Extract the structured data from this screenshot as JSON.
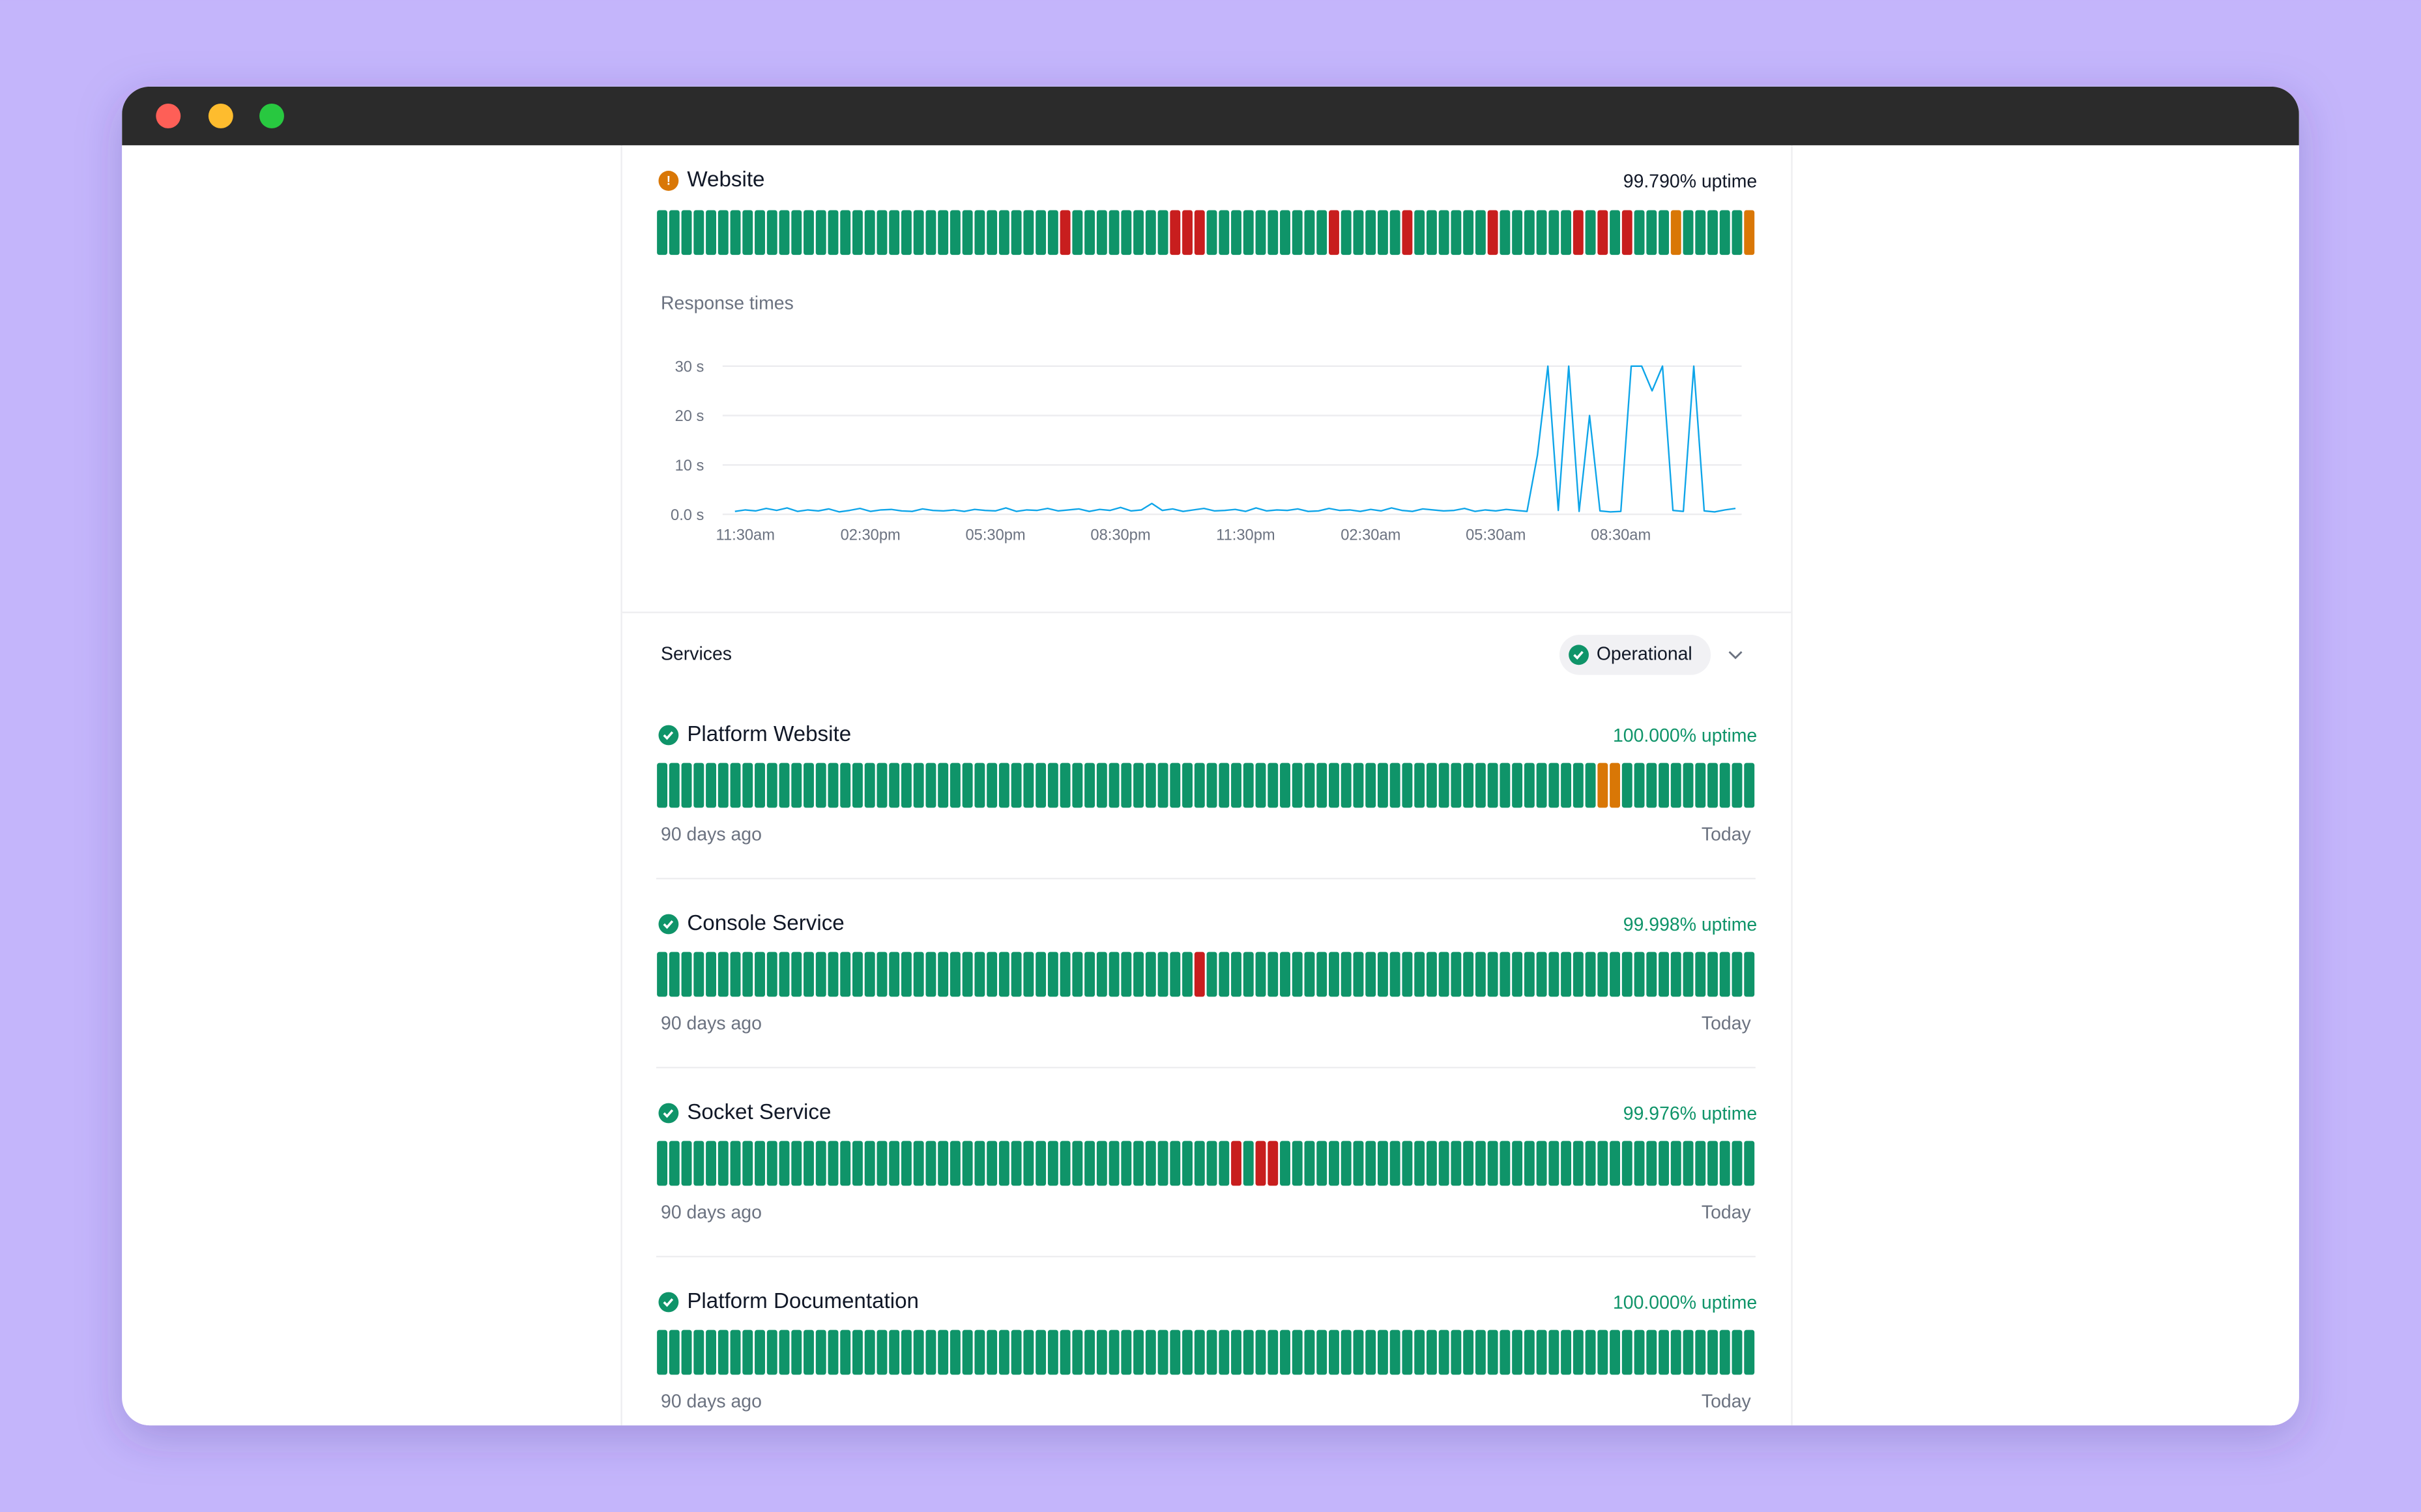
{
  "status_colors": {
    "u": "#0f9469",
    "d": "#c81e1e",
    "p": "#d97706"
  },
  "website": {
    "name": "Website",
    "uptime": "99.790% uptime",
    "days": [
      "u",
      "u",
      "u",
      "u",
      "u",
      "u",
      "u",
      "u",
      "u",
      "u",
      "u",
      "u",
      "u",
      "u",
      "u",
      "u",
      "u",
      "u",
      "u",
      "u",
      "u",
      "u",
      "u",
      "u",
      "u",
      "u",
      "u",
      "u",
      "u",
      "u",
      "u",
      "u",
      "u",
      "d",
      "u",
      "u",
      "u",
      "u",
      "u",
      "u",
      "u",
      "u",
      "d",
      "d",
      "d",
      "u",
      "u",
      "u",
      "u",
      "u",
      "u",
      "u",
      "u",
      "u",
      "u",
      "d",
      "u",
      "u",
      "u",
      "u",
      "u",
      "d",
      "u",
      "u",
      "u",
      "u",
      "u",
      "u",
      "d",
      "u",
      "u",
      "u",
      "u",
      "u",
      "u",
      "d",
      "u",
      "d",
      "u",
      "d",
      "u",
      "u",
      "u",
      "p",
      "u",
      "u",
      "u",
      "u",
      "u",
      "p"
    ]
  },
  "chart_data": {
    "type": "line",
    "title": "Response times",
    "color": "#0ea5e9",
    "values": [
      0.6,
      0.9,
      0.7,
      1.2,
      0.8,
      1.3,
      0.6,
      0.9,
      0.7,
      1.1,
      0.5,
      0.8,
      1.2,
      0.6,
      0.9,
      1.0,
      0.7,
      0.6,
      1.1,
      0.8,
      0.7,
      0.9,
      0.6,
      1.0,
      0.8,
      0.7,
      1.3,
      0.6,
      0.9,
      0.8,
      1.2,
      0.7,
      0.9,
      1.1,
      0.6,
      1.0,
      0.8,
      1.4,
      0.7,
      0.9,
      2.2,
      0.8,
      1.1,
      0.6,
      0.9,
      1.2,
      0.7,
      0.8,
      1.0,
      0.6,
      1.3,
      0.7,
      0.9,
      0.8,
      1.1,
      0.6,
      0.7,
      1.2,
      0.8,
      0.9,
      0.6,
      1.0,
      0.7,
      1.3,
      0.8,
      0.6,
      1.1,
      0.9,
      0.7,
      0.8,
      1.2,
      0.6,
      0.9,
      0.7,
      1.0,
      0.8,
      0.6,
      12,
      30,
      0.8,
      30,
      0.6,
      20,
      0.7,
      0.5,
      0.6,
      30,
      30,
      25,
      30,
      0.8,
      0.6,
      30,
      0.7,
      0.5,
      0.9,
      1.2
    ],
    "xlim": [
      0,
      96
    ],
    "xticks": [
      {
        "value": 1,
        "label": "11:30am"
      },
      {
        "value": 13,
        "label": "02:30pm"
      },
      {
        "value": 25,
        "label": "05:30pm"
      },
      {
        "value": 37,
        "label": "08:30pm"
      },
      {
        "value": 49,
        "label": "11:30pm"
      },
      {
        "value": 61,
        "label": "02:30am"
      },
      {
        "value": 73,
        "label": "05:30am"
      },
      {
        "value": 85,
        "label": "08:30am"
      }
    ],
    "ylim": [
      0,
      30
    ],
    "yticks": [
      {
        "value": 0,
        "label": "0.0 s"
      },
      {
        "value": 10,
        "label": "10 s"
      },
      {
        "value": 20,
        "label": "20 s"
      },
      {
        "value": 30,
        "label": "30 s"
      }
    ],
    "grid": true
  },
  "services": {
    "title": "Services",
    "status": "Operational",
    "monitors": [
      {
        "name": "Platform Website",
        "uptime": "100.000% uptime",
        "start_label": "90 days ago",
        "end_label": "Today",
        "days": [
          "u",
          "u",
          "u",
          "u",
          "u",
          "u",
          "u",
          "u",
          "u",
          "u",
          "u",
          "u",
          "u",
          "u",
          "u",
          "u",
          "u",
          "u",
          "u",
          "u",
          "u",
          "u",
          "u",
          "u",
          "u",
          "u",
          "u",
          "u",
          "u",
          "u",
          "u",
          "u",
          "u",
          "u",
          "u",
          "u",
          "u",
          "u",
          "u",
          "u",
          "u",
          "u",
          "u",
          "u",
          "u",
          "u",
          "u",
          "u",
          "u",
          "u",
          "u",
          "u",
          "u",
          "u",
          "u",
          "u",
          "u",
          "u",
          "u",
          "u",
          "u",
          "u",
          "u",
          "u",
          "u",
          "u",
          "u",
          "u",
          "u",
          "u",
          "u",
          "u",
          "u",
          "u",
          "u",
          "u",
          "u",
          "p",
          "p",
          "u",
          "u",
          "u",
          "u",
          "u",
          "u",
          "u",
          "u",
          "u",
          "u",
          "u"
        ]
      },
      {
        "name": "Console Service",
        "uptime": "99.998% uptime",
        "start_label": "90 days ago",
        "end_label": "Today",
        "days": [
          "u",
          "u",
          "u",
          "u",
          "u",
          "u",
          "u",
          "u",
          "u",
          "u",
          "u",
          "u",
          "u",
          "u",
          "u",
          "u",
          "u",
          "u",
          "u",
          "u",
          "u",
          "u",
          "u",
          "u",
          "u",
          "u",
          "u",
          "u",
          "u",
          "u",
          "u",
          "u",
          "u",
          "u",
          "u",
          "u",
          "u",
          "u",
          "u",
          "u",
          "u",
          "u",
          "u",
          "u",
          "d",
          "u",
          "u",
          "u",
          "u",
          "u",
          "u",
          "u",
          "u",
          "u",
          "u",
          "u",
          "u",
          "u",
          "u",
          "u",
          "u",
          "u",
          "u",
          "u",
          "u",
          "u",
          "u",
          "u",
          "u",
          "u",
          "u",
          "u",
          "u",
          "u",
          "u",
          "u",
          "u",
          "u",
          "u",
          "u",
          "u",
          "u",
          "u",
          "u",
          "u",
          "u",
          "u",
          "u",
          "u",
          "u"
        ]
      },
      {
        "name": "Socket Service",
        "uptime": "99.976% uptime",
        "start_label": "90 days ago",
        "end_label": "Today",
        "days": [
          "u",
          "u",
          "u",
          "u",
          "u",
          "u",
          "u",
          "u",
          "u",
          "u",
          "u",
          "u",
          "u",
          "u",
          "u",
          "u",
          "u",
          "u",
          "u",
          "u",
          "u",
          "u",
          "u",
          "u",
          "u",
          "u",
          "u",
          "u",
          "u",
          "u",
          "u",
          "u",
          "u",
          "u",
          "u",
          "u",
          "u",
          "u",
          "u",
          "u",
          "u",
          "u",
          "u",
          "u",
          "u",
          "u",
          "u",
          "d",
          "u",
          "d",
          "d",
          "u",
          "u",
          "u",
          "u",
          "u",
          "u",
          "u",
          "u",
          "u",
          "u",
          "u",
          "u",
          "u",
          "u",
          "u",
          "u",
          "u",
          "u",
          "u",
          "u",
          "u",
          "u",
          "u",
          "u",
          "u",
          "u",
          "u",
          "u",
          "u",
          "u",
          "u",
          "u",
          "u",
          "u",
          "u",
          "u",
          "u",
          "u",
          "u"
        ]
      },
      {
        "name": "Platform Documentation",
        "uptime": "100.000% uptime",
        "start_label": "90 days ago",
        "end_label": "Today",
        "days": [
          "u",
          "u",
          "u",
          "u",
          "u",
          "u",
          "u",
          "u",
          "u",
          "u",
          "u",
          "u",
          "u",
          "u",
          "u",
          "u",
          "u",
          "u",
          "u",
          "u",
          "u",
          "u",
          "u",
          "u",
          "u",
          "u",
          "u",
          "u",
          "u",
          "u",
          "u",
          "u",
          "u",
          "u",
          "u",
          "u",
          "u",
          "u",
          "u",
          "u",
          "u",
          "u",
          "u",
          "u",
          "u",
          "u",
          "u",
          "u",
          "u",
          "u",
          "u",
          "u",
          "u",
          "u",
          "u",
          "u",
          "u",
          "u",
          "u",
          "u",
          "u",
          "u",
          "u",
          "u",
          "u",
          "u",
          "u",
          "u",
          "u",
          "u",
          "u",
          "u",
          "u",
          "u",
          "u",
          "u",
          "u",
          "u",
          "u",
          "u",
          "u",
          "u",
          "u",
          "u",
          "u",
          "u",
          "u",
          "u",
          "u",
          "u"
        ]
      }
    ]
  }
}
